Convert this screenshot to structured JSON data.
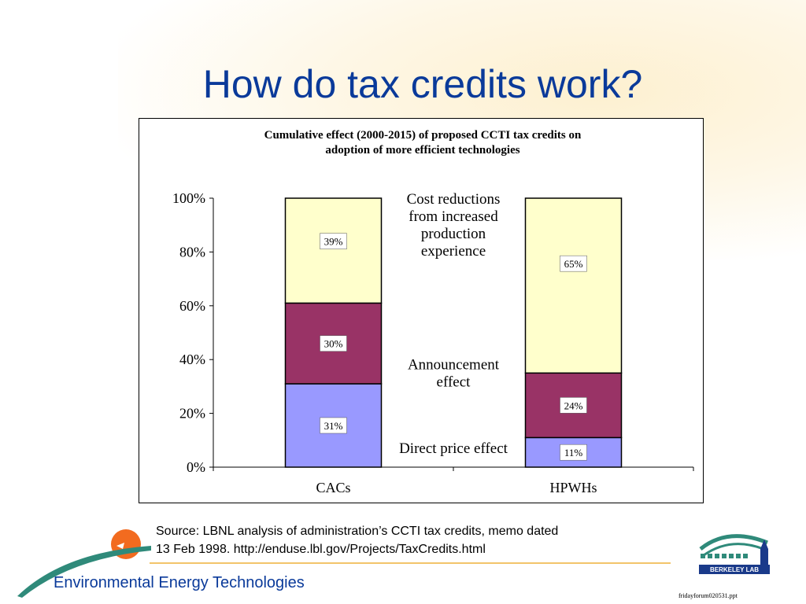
{
  "slide": {
    "title": "How do tax credits work?",
    "source_line1": "Source:  LBNL analysis of administration’s CCTI tax credits, memo dated",
    "source_line2": "13 Feb 1998.  http://enduse.lbl.gov/Projects/TaxCredits.html",
    "footer": "Environmental Energy Technologies",
    "filename": "fridayforum020531.ppt",
    "logo_text": "BERKELEY LAB",
    "accent_color": "#0a3a9a",
    "rule_color": "#f2c46a"
  },
  "chart_data": {
    "type": "bar",
    "stacked": true,
    "title_line1": "Cumulative effect (2000-2015) of proposed CCTI tax credits on",
    "title_line2": "adoption of more efficient technologies",
    "categories": [
      "CACs",
      "HPWHs"
    ],
    "ylim": [
      0,
      100
    ],
    "yticks": [
      0,
      20,
      40,
      60,
      80,
      100
    ],
    "ytick_labels": [
      "0%",
      "20%",
      "40%",
      "60%",
      "80%",
      "100%"
    ],
    "series": [
      {
        "name": "Direct price effect",
        "values": [
          31,
          11
        ],
        "labels": [
          "31%",
          "11%"
        ],
        "color": "#9999ff"
      },
      {
        "name": "Announcement effect",
        "values": [
          30,
          24
        ],
        "labels": [
          "30%",
          "24%"
        ],
        "color": "#993366"
      },
      {
        "name": "Cost reductions from increased production experience",
        "values": [
          39,
          65
        ],
        "labels": [
          "39%",
          "65%"
        ],
        "color": "#ffffcc"
      }
    ],
    "annotations": [
      {
        "lines": [
          "Cost reductions",
          "from increased",
          "production",
          "experience"
        ],
        "anchor_value": 90
      },
      {
        "lines": [
          "Announcement",
          "effect"
        ],
        "anchor_value": 35
      },
      {
        "lines": [
          "Direct price effect"
        ],
        "anchor_value": 7
      }
    ],
    "grid": false,
    "legend": "inline annotations between bars"
  }
}
